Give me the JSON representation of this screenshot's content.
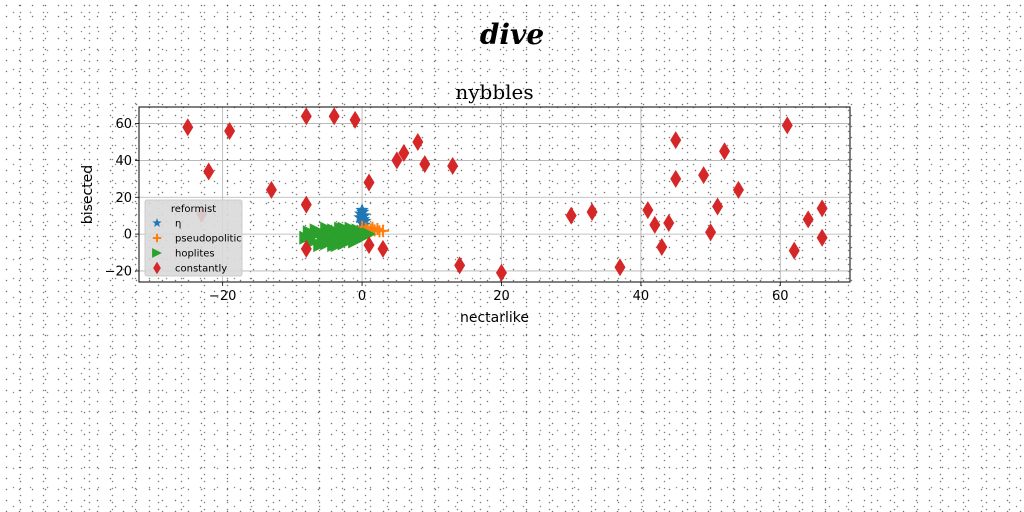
{
  "figure": {
    "suptitle": "dive"
  },
  "chart_data": {
    "type": "scatter",
    "title": "nybbles",
    "xlabel": "nectarlike",
    "ylabel": "bisected",
    "xlim": [
      -32,
      70
    ],
    "ylim": [
      -26,
      69
    ],
    "xticks": [
      -20,
      0,
      20,
      40,
      60
    ],
    "yticks": [
      -20,
      0,
      20,
      40,
      60
    ],
    "grid": true,
    "legend": {
      "title": "reformist",
      "placement": "lower-left"
    },
    "series": [
      {
        "name": "η",
        "marker": "star",
        "color": "#1f77b4",
        "points": [
          [
            0,
            6
          ],
          [
            0.2,
            8
          ],
          [
            0.3,
            10
          ],
          [
            -0.3,
            9
          ],
          [
            0.1,
            12
          ],
          [
            0.4,
            7
          ],
          [
            -0.2,
            11
          ],
          [
            0,
            13
          ],
          [
            0.3,
            5
          ]
        ]
      },
      {
        "name": "pseudopolitic",
        "marker": "plus",
        "color": "#ff7f0e",
        "points": [
          [
            0.5,
            3
          ],
          [
            1.2,
            2.5
          ],
          [
            1.8,
            2
          ],
          [
            2.5,
            1.5
          ],
          [
            1,
            1
          ],
          [
            0,
            4
          ],
          [
            2.2,
            2.8
          ],
          [
            3,
            1.8
          ],
          [
            1.5,
            3.5
          ],
          [
            0.8,
            2
          ]
        ]
      },
      {
        "name": "hoplites",
        "marker": "triangle-right",
        "color": "#2ca02c",
        "points": [
          [
            -8,
            -2
          ],
          [
            -7.5,
            1
          ],
          [
            -7,
            -4
          ],
          [
            -6.5,
            2
          ],
          [
            -6,
            -6
          ],
          [
            -5.5,
            0
          ],
          [
            -5,
            3
          ],
          [
            -5,
            -5
          ],
          [
            -4.5,
            -2
          ],
          [
            -4,
            2
          ],
          [
            -4,
            -6
          ],
          [
            -3.5,
            0
          ],
          [
            -3,
            -3
          ],
          [
            -3,
            3
          ],
          [
            -2.5,
            -5
          ],
          [
            -2,
            1
          ],
          [
            -2,
            -2
          ],
          [
            -1.5,
            3
          ],
          [
            -1,
            -4
          ],
          [
            -1,
            0
          ],
          [
            -0.5,
            2
          ],
          [
            0,
            -2
          ],
          [
            0,
            1
          ],
          [
            0.5,
            -1
          ],
          [
            1,
            0
          ],
          [
            -6,
            1
          ],
          [
            -7,
            -1
          ],
          [
            -3.5,
            -6
          ],
          [
            -2.5,
            3
          ],
          [
            -5.5,
            -3
          ]
        ]
      },
      {
        "name": "constantly",
        "marker": "thin-diamond",
        "color": "#d62728",
        "points": [
          [
            -25,
            58
          ],
          [
            -19,
            56
          ],
          [
            -22,
            34
          ],
          [
            -23,
            11
          ],
          [
            -13,
            24
          ],
          [
            -8,
            64
          ],
          [
            -8,
            16
          ],
          [
            -8,
            -8
          ],
          [
            -4,
            64
          ],
          [
            -1,
            62
          ],
          [
            1,
            28
          ],
          [
            1,
            -6
          ],
          [
            3,
            -8
          ],
          [
            5,
            40
          ],
          [
            6,
            44
          ],
          [
            8,
            50
          ],
          [
            9,
            38
          ],
          [
            13,
            37
          ],
          [
            14,
            -17
          ],
          [
            20,
            -21
          ],
          [
            30,
            10
          ],
          [
            33,
            12
          ],
          [
            37,
            -18
          ],
          [
            41,
            13
          ],
          [
            42,
            5
          ],
          [
            43,
            -7
          ],
          [
            44,
            6
          ],
          [
            45,
            51
          ],
          [
            45,
            30
          ],
          [
            49,
            32
          ],
          [
            50,
            1
          ],
          [
            51,
            15
          ],
          [
            52,
            45
          ],
          [
            54,
            24
          ],
          [
            61,
            59
          ],
          [
            62,
            -9
          ],
          [
            64,
            8
          ],
          [
            66,
            14
          ],
          [
            66,
            -2
          ]
        ]
      }
    ]
  }
}
